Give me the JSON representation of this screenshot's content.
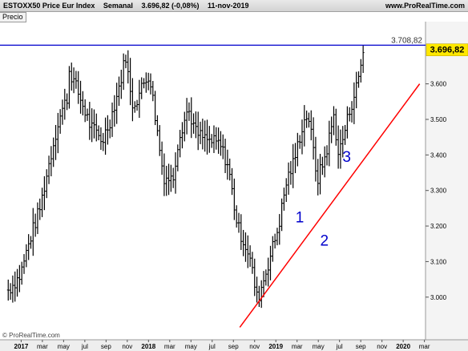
{
  "header": {
    "symbol": "ESTOXX50 Price Eur Index",
    "period": "Semanal",
    "price_change": "3.696,82 (-0,08%)",
    "date": "11-nov-2019",
    "source": "www.ProRealTime.com"
  },
  "panel_label": "Precio",
  "watermark": "© ProRealTime.com",
  "chart_data": {
    "type": "bar",
    "ylim": [
      2880,
      3775
    ],
    "yticks": [
      {
        "v": 3000,
        "label": "3.000"
      },
      {
        "v": 3100,
        "label": "3.100"
      },
      {
        "v": 3200,
        "label": "3.200"
      },
      {
        "v": 3300,
        "label": "3.300"
      },
      {
        "v": 3400,
        "label": "3.400"
      },
      {
        "v": 3500,
        "label": "3.500"
      },
      {
        "v": 3600,
        "label": "3.600"
      }
    ],
    "xticks": [
      {
        "label": "2017",
        "bold": true
      },
      {
        "label": "mar",
        "bold": false
      },
      {
        "label": "may",
        "bold": false
      },
      {
        "label": "jul",
        "bold": false
      },
      {
        "label": "sep",
        "bold": false
      },
      {
        "label": "nov",
        "bold": false
      },
      {
        "label": "2018",
        "bold": true
      },
      {
        "label": "mar",
        "bold": false
      },
      {
        "label": "may",
        "bold": false
      },
      {
        "label": "jul",
        "bold": false
      },
      {
        "label": "sep",
        "bold": false
      },
      {
        "label": "nov",
        "bold": false
      },
      {
        "label": "2019",
        "bold": true
      },
      {
        "label": "mar",
        "bold": false
      },
      {
        "label": "may",
        "bold": false
      },
      {
        "label": "jul",
        "bold": false
      },
      {
        "label": "sep",
        "bold": false
      },
      {
        "label": "nov",
        "bold": false
      },
      {
        "label": "2020",
        "bold": true
      },
      {
        "label": "mar",
        "bold": false
      }
    ],
    "resistance": {
      "value": 3708.82,
      "label": "3.708,82",
      "color": "#0000cc"
    },
    "last_price": {
      "value": 3696.82,
      "label": "3.696,82",
      "color": "#ffe800"
    },
    "trendline": {
      "from": [
        2018.82,
        2915
      ],
      "to": [
        2020.35,
        3600
      ],
      "color": "#ff0000"
    },
    "annotations": [
      {
        "label": "1",
        "t": 2019.33,
        "v": 3210,
        "color": "#0000cc"
      },
      {
        "label": "2",
        "t": 2019.54,
        "v": 3145,
        "color": "#0000cc"
      },
      {
        "label": "3",
        "t": 2019.73,
        "v": 3380,
        "color": "#0000cc"
      }
    ],
    "anchors": [
      [
        2016.85,
        3020
      ],
      [
        2016.95,
        3060
      ],
      [
        2017.05,
        3180
      ],
      [
        2017.12,
        3250
      ],
      [
        2017.2,
        3380
      ],
      [
        2017.28,
        3500
      ],
      [
        2017.35,
        3560
      ],
      [
        2017.37,
        3640
      ],
      [
        2017.45,
        3570
      ],
      [
        2017.55,
        3480
      ],
      [
        2017.65,
        3440
      ],
      [
        2017.72,
        3500
      ],
      [
        2017.8,
        3600
      ],
      [
        2017.85,
        3680
      ],
      [
        2017.9,
        3540
      ],
      [
        2017.95,
        3560
      ],
      [
        2018.0,
        3600
      ],
      [
        2018.05,
        3630
      ],
      [
        2018.1,
        3510
      ],
      [
        2018.17,
        3340
      ],
      [
        2018.25,
        3330
      ],
      [
        2018.3,
        3450
      ],
      [
        2018.38,
        3530
      ],
      [
        2018.45,
        3460
      ],
      [
        2018.55,
        3440
      ],
      [
        2018.65,
        3430
      ],
      [
        2018.72,
        3370
      ],
      [
        2018.8,
        3200
      ],
      [
        2018.9,
        3120
      ],
      [
        2018.97,
        2990
      ],
      [
        2019.05,
        3080
      ],
      [
        2019.15,
        3200
      ],
      [
        2019.22,
        3330
      ],
      [
        2019.28,
        3380
      ],
      [
        2019.35,
        3480
      ],
      [
        2019.4,
        3520
      ],
      [
        2019.45,
        3400
      ],
      [
        2019.48,
        3330
      ],
      [
        2019.55,
        3400
      ],
      [
        2019.62,
        3510
      ],
      [
        2019.66,
        3400
      ],
      [
        2019.7,
        3450
      ],
      [
        2019.75,
        3520
      ],
      [
        2019.82,
        3600
      ],
      [
        2019.87,
        3690
      ]
    ]
  }
}
